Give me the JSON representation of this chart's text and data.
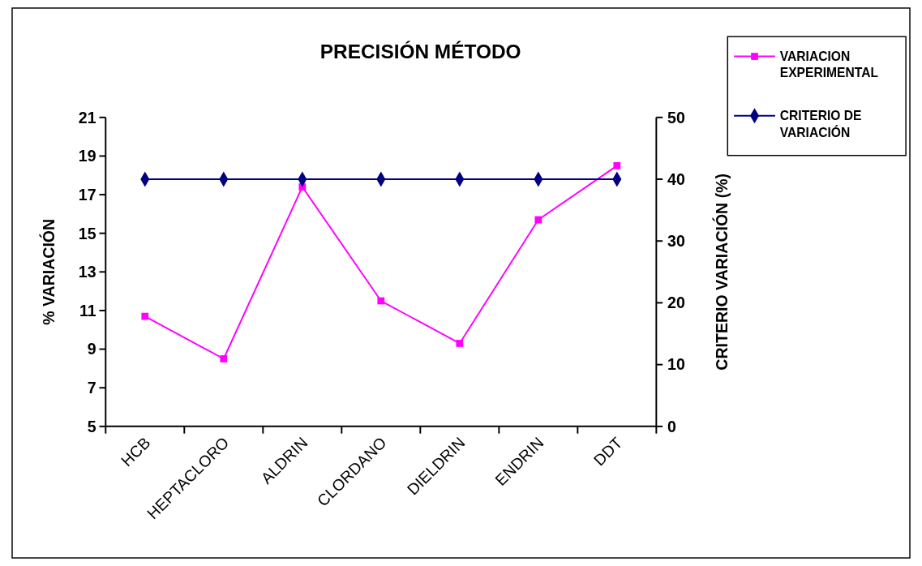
{
  "chart_data": {
    "type": "line",
    "title": "PRECISIÓN MÉTODO",
    "ylabel": "% VARIACIÓN",
    "y2label": "CRITERIO VARIACIÓN (%)",
    "categories": [
      "HCB",
      "HEPTACLORO",
      "ALDRIN",
      "CLORDANO",
      "DIELDRIN",
      "ENDRIN",
      "DDT"
    ],
    "series": [
      {
        "name": "VARIACION EXPERIMENTAL",
        "color": "#ff00ff",
        "marker": "square",
        "values": [
          10.7,
          8.5,
          17.4,
          11.5,
          9.3,
          15.7,
          18.5
        ]
      },
      {
        "name": "CRITERIO DE VARIACIÓN",
        "color": "#000080",
        "marker": "diamond",
        "axis": "y2",
        "values": [
          40,
          40,
          40,
          40,
          40,
          40,
          40
        ]
      }
    ],
    "ylim": [
      5,
      21
    ],
    "yticks": [
      5,
      7,
      9,
      11,
      13,
      15,
      17,
      19,
      21
    ],
    "y2lim": [
      0,
      50
    ],
    "y2ticks": [
      0,
      10,
      20,
      30,
      40,
      50
    ],
    "grid": false,
    "legend": "top right"
  }
}
